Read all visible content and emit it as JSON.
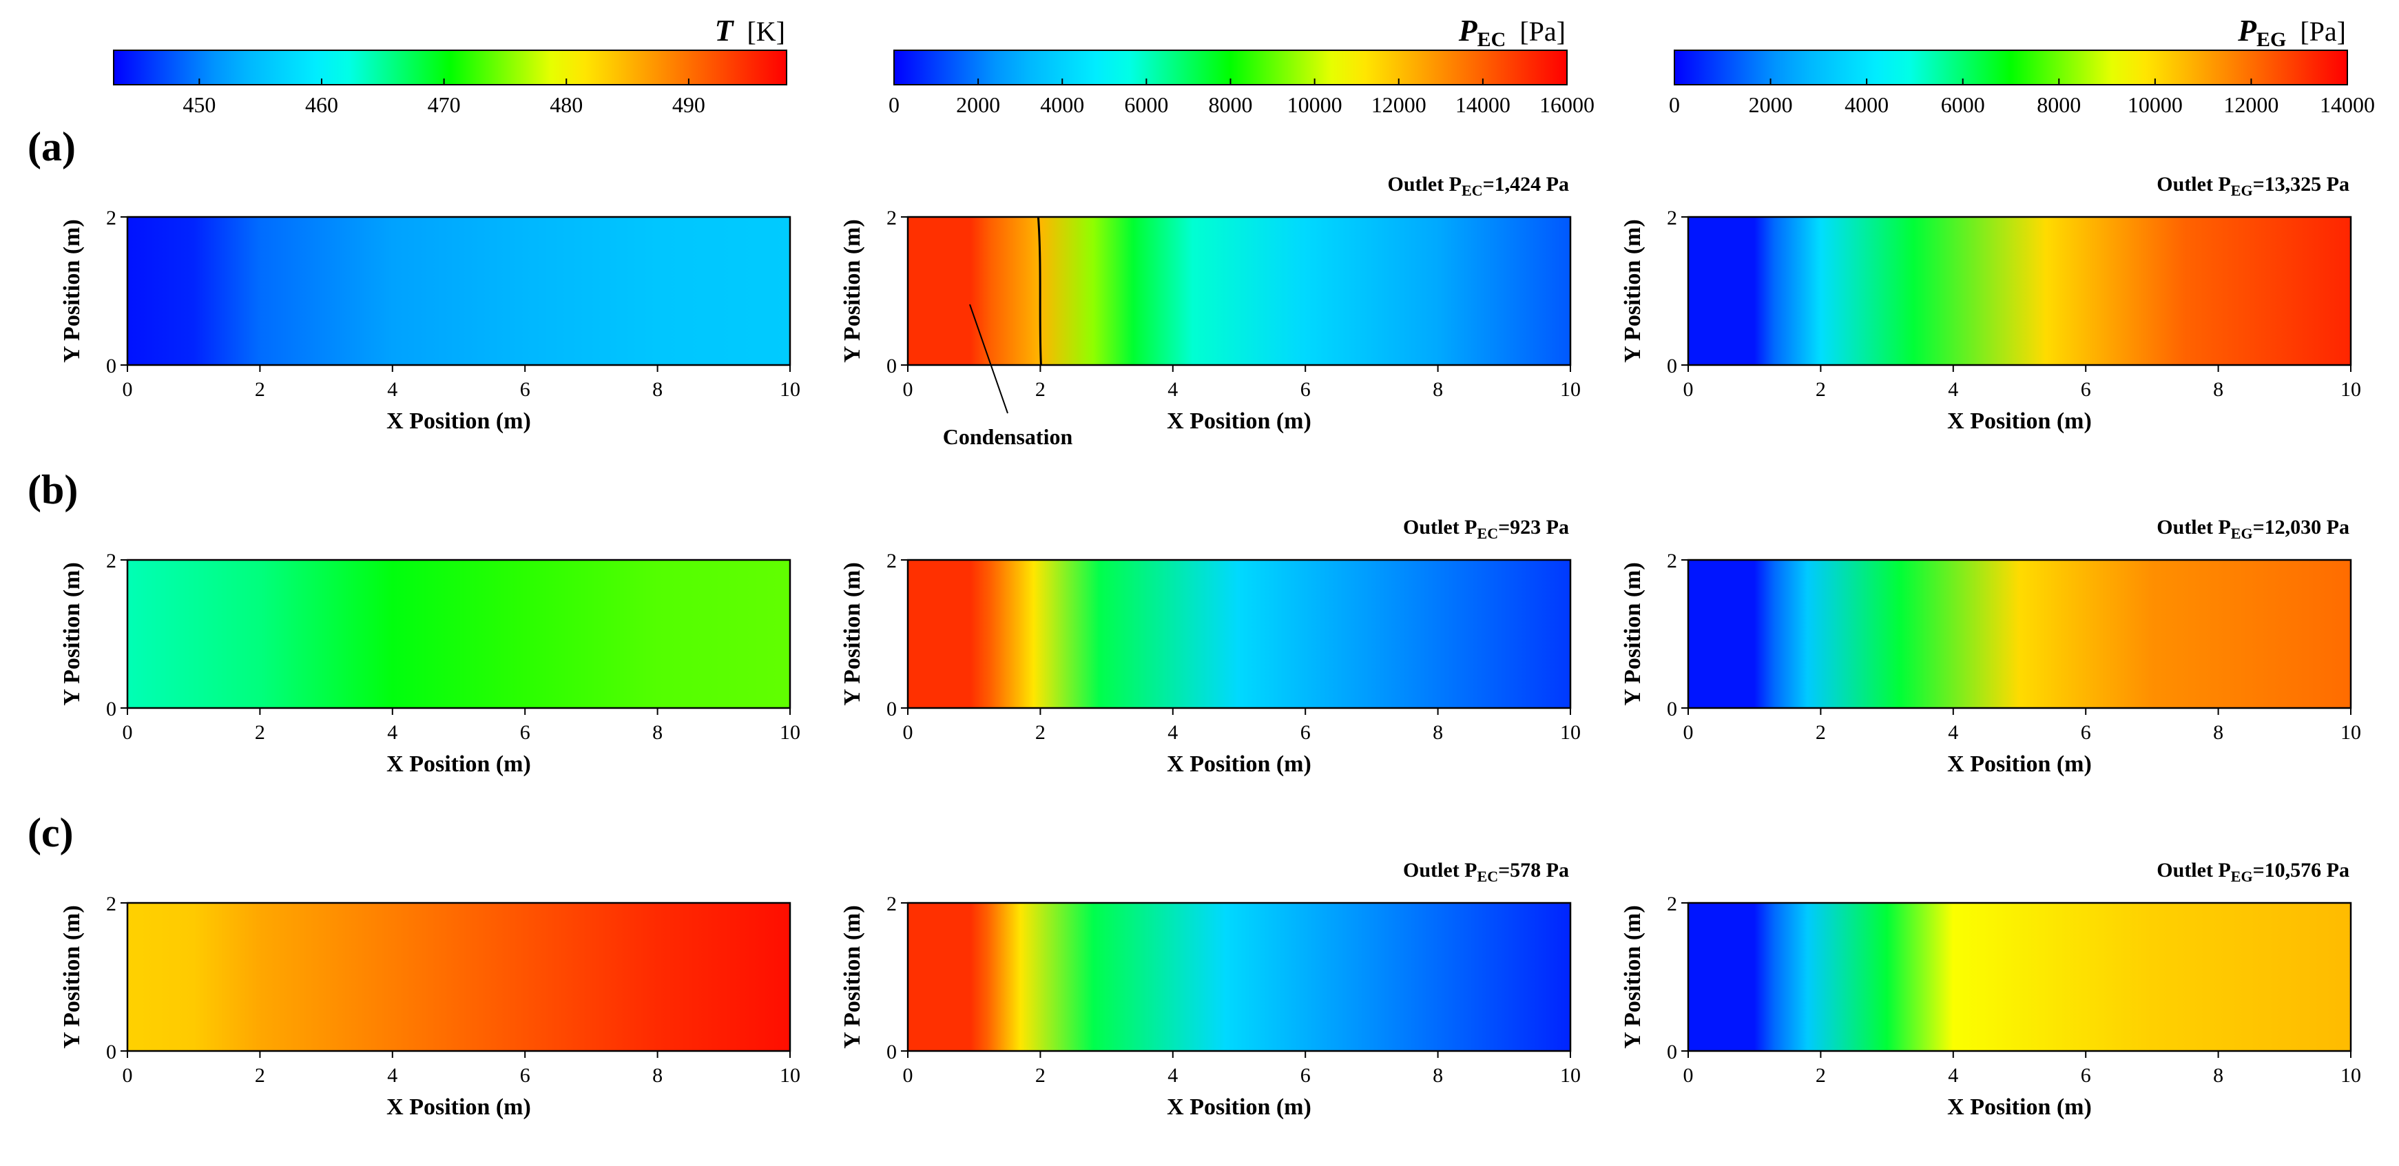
{
  "chart_data": {
    "type": "heatmap",
    "x_label": "X Position (m)",
    "y_label": "Y Position (m)",
    "x_ticks": [
      "0",
      "2",
      "4",
      "6",
      "8",
      "10"
    ],
    "x_range": [
      0,
      10
    ],
    "y_ticks": [
      "0",
      "2"
    ],
    "y_range": [
      0,
      2
    ],
    "colormap": [
      "#0000ff",
      "#00a5ff",
      "#00ffff",
      "#00ff00",
      "#ffff00",
      "#ff8000",
      "#ff0000"
    ],
    "colorbars": [
      {
        "symbol": "T",
        "subscript": "",
        "unit": "[K]",
        "range": [
          443,
          498
        ],
        "ticks": [
          "450",
          "460",
          "470",
          "480",
          "490"
        ],
        "tick_values": [
          450,
          460,
          470,
          480,
          490
        ]
      },
      {
        "symbol": "P",
        "subscript": "EC",
        "unit": "[Pa]",
        "range": [
          0,
          16000
        ],
        "ticks": [
          "0",
          "2000",
          "4000",
          "6000",
          "8000",
          "10000",
          "12000",
          "14000",
          "16000"
        ],
        "tick_values": [
          0,
          2000,
          4000,
          6000,
          8000,
          10000,
          12000,
          14000,
          16000
        ]
      },
      {
        "symbol": "P",
        "subscript": "EG",
        "unit": "[Pa]",
        "range": [
          0,
          14000
        ],
        "ticks": [
          "0",
          "2000",
          "4000",
          "6000",
          "8000",
          "10000",
          "12000",
          "14000"
        ],
        "tick_values": [
          0,
          2000,
          4000,
          6000,
          8000,
          10000,
          12000,
          14000
        ]
      }
    ],
    "rows": [
      {
        "label": "(a)",
        "panels": [
          {
            "field": "T",
            "outlet": null,
            "profile": [
              [
                0,
                444
              ],
              [
                1,
                445
              ],
              [
                2,
                449
              ],
              [
                4,
                452
              ],
              [
                6,
                454
              ],
              [
                8,
                455.5
              ],
              [
                10,
                456
              ]
            ]
          },
          {
            "field": "P_EC",
            "outlet": {
              "prefix": "Outlet P",
              "sub": "EC",
              "value": "=1,424 Pa"
            },
            "profile": [
              [
                0,
                15000
              ],
              [
                0.95,
                15000
              ],
              [
                1.25,
                14000
              ],
              [
                2,
                12200
              ],
              [
                2.8,
                9500
              ],
              [
                3.4,
                7500
              ],
              [
                4.3,
                5800
              ],
              [
                6,
                4200
              ],
              [
                8,
                2800
              ],
              [
                10,
                1424
              ]
            ],
            "annotation": {
              "text": "Condensation",
              "boundary_x": 2
            }
          },
          {
            "field": "P_EG",
            "outlet": {
              "prefix": "Outlet P",
              "sub": "EG",
              "value": "=13,325 Pa"
            },
            "profile": [
              [
                0,
                300
              ],
              [
                1,
                300
              ],
              [
                1.3,
                1500
              ],
              [
                2,
                3800
              ],
              [
                3.4,
                6500
              ],
              [
                5.4,
                10000
              ],
              [
                7.5,
                12200
              ],
              [
                10,
                13325
              ]
            ]
          }
        ]
      },
      {
        "label": "(b)",
        "panels": [
          {
            "field": "T",
            "outlet": null,
            "profile": [
              [
                0,
                464
              ],
              [
                2,
                466
              ],
              [
                4,
                470
              ],
              [
                6,
                472
              ],
              [
                8,
                473.5
              ],
              [
                10,
                474
              ]
            ]
          },
          {
            "field": "P_EC",
            "outlet": {
              "prefix": "Outlet P",
              "sub": "EC",
              "value": "=923 Pa"
            },
            "profile": [
              [
                0,
                15000
              ],
              [
                0.95,
                15000
              ],
              [
                1.25,
                14000
              ],
              [
                1.9,
                11200
              ],
              [
                2.9,
                7200
              ],
              [
                5,
                4200
              ],
              [
                7,
                2500
              ],
              [
                10,
                923
              ]
            ]
          },
          {
            "field": "P_EG",
            "outlet": {
              "prefix": "Outlet P",
              "sub": "EG",
              "value": "=12,030 Pa"
            },
            "profile": [
              [
                0,
                300
              ],
              [
                1,
                300
              ],
              [
                1.3,
                1500
              ],
              [
                1.8,
                3300
              ],
              [
                3.2,
                6500
              ],
              [
                5,
                10000
              ],
              [
                7,
                11400
              ],
              [
                10,
                12030
              ]
            ]
          }
        ]
      },
      {
        "label": "(c)",
        "panels": [
          {
            "field": "T",
            "outlet": null,
            "profile": [
              [
                0,
                483
              ],
              [
                1,
                483.5
              ],
              [
                2,
                486
              ],
              [
                4,
                489
              ],
              [
                6,
                492
              ],
              [
                8,
                495
              ],
              [
                10,
                497
              ]
            ]
          },
          {
            "field": "P_EC",
            "outlet": {
              "prefix": "Outlet P",
              "sub": "EC",
              "value": "=578 Pa"
            },
            "profile": [
              [
                0,
                15000
              ],
              [
                0.95,
                15000
              ],
              [
                1.2,
                14000
              ],
              [
                1.7,
                11200
              ],
              [
                2.8,
                7200
              ],
              [
                4.8,
                4200
              ],
              [
                7,
                2300
              ],
              [
                10,
                578
              ]
            ]
          },
          {
            "field": "P_EG",
            "outlet": {
              "prefix": "Outlet P",
              "sub": "EG",
              "value": "=10,576 Pa"
            },
            "profile": [
              [
                0,
                300
              ],
              [
                1,
                300
              ],
              [
                1.3,
                1500
              ],
              [
                1.8,
                3300
              ],
              [
                3,
                6500
              ],
              [
                4,
                9300
              ],
              [
                7,
                10200
              ],
              [
                10,
                10576
              ]
            ]
          }
        ]
      }
    ]
  }
}
